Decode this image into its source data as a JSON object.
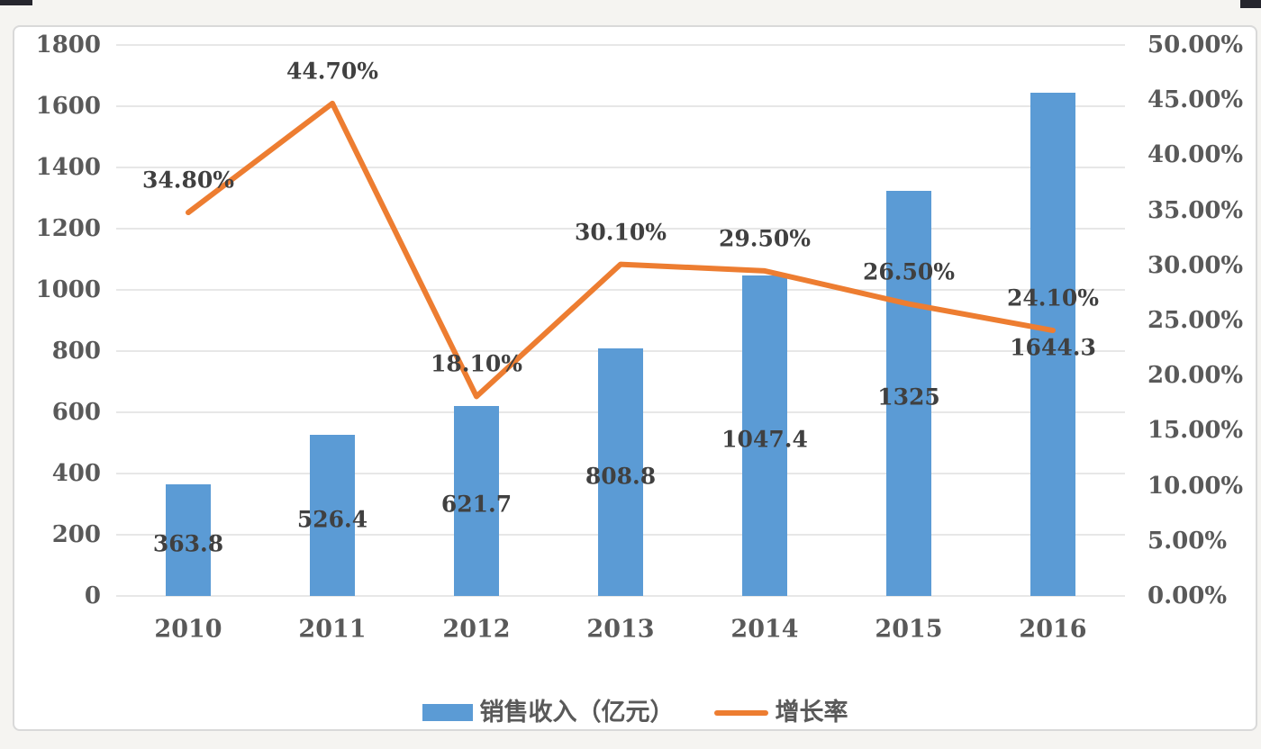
{
  "colors": {
    "bar": "#5b9bd5",
    "line": "#ed7d31",
    "grid": "#e7e7e7",
    "axis_text": "#595959",
    "data_label_text": "#404040",
    "chart_border": "#d9d9d9",
    "chart_background": "#ffffff",
    "page_background": "#f5f4f1"
  },
  "chart_data": {
    "type": "bar-line-combo",
    "title": "",
    "categories": [
      "2010",
      "2011",
      "2012",
      "2013",
      "2014",
      "2015",
      "2016"
    ],
    "series": [
      {
        "name": "销售收入（亿元）",
        "type": "bar",
        "axis": "left",
        "color": "#5b9bd5",
        "values": [
          363.8,
          526.4,
          621.7,
          808.8,
          1047.4,
          1325,
          1644.3
        ],
        "labels": [
          "363.8",
          "526.4",
          "621.7",
          "808.8",
          "1047.4",
          "1325",
          "1644.3"
        ]
      },
      {
        "name": "增长率",
        "type": "line",
        "axis": "right",
        "color": "#ed7d31",
        "values": [
          34.8,
          44.7,
          18.1,
          30.1,
          29.5,
          26.5,
          24.1
        ],
        "labels": [
          "34.80%",
          "44.70%",
          "18.10%",
          "30.10%",
          "29.50%",
          "26.50%",
          "24.10%"
        ]
      }
    ],
    "left_axis": {
      "min": 0,
      "max": 1800,
      "step": 200,
      "ticks": [
        "0",
        "200",
        "400",
        "600",
        "800",
        "1000",
        "1200",
        "1400",
        "1600",
        "1800"
      ]
    },
    "right_axis": {
      "min": 0,
      "max": 50,
      "step": 5,
      "ticks": [
        "0.00%",
        "5.00%",
        "10.00%",
        "15.00%",
        "20.00%",
        "25.00%",
        "30.00%",
        "35.00%",
        "40.00%",
        "45.00%",
        "50.00%"
      ]
    },
    "grid": true,
    "legend_position": "bottom"
  }
}
